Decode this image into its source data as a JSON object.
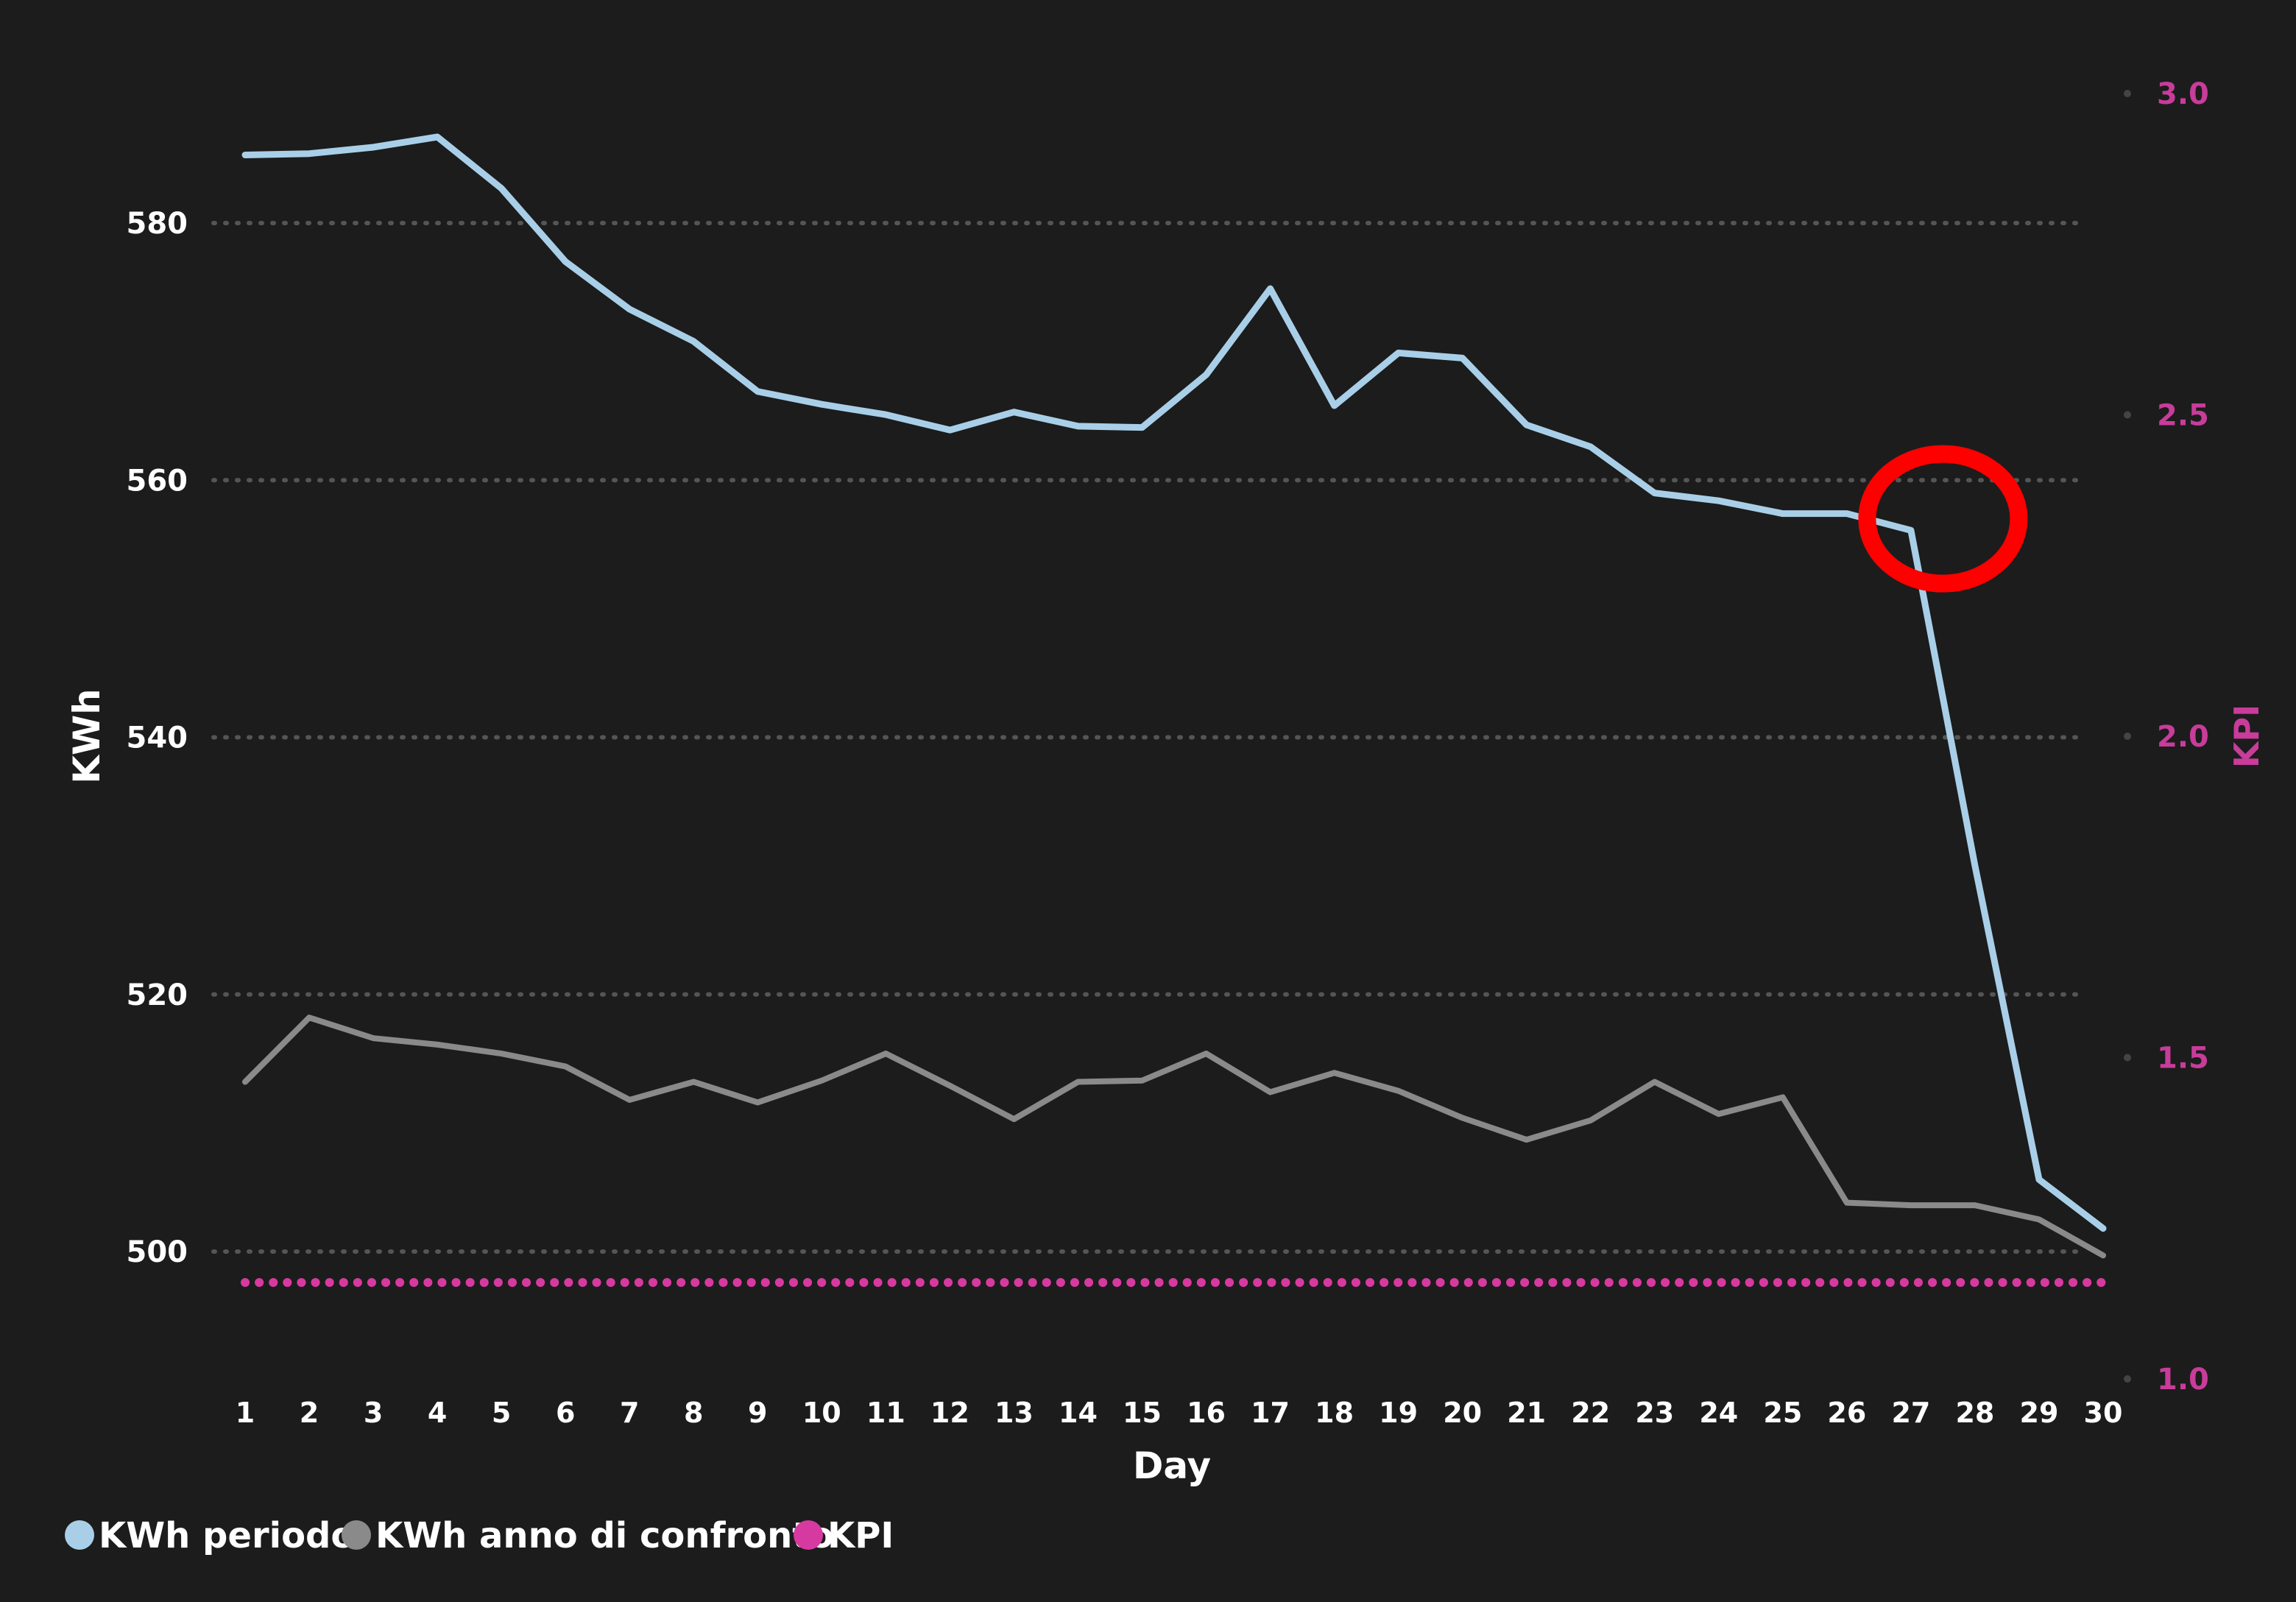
{
  "chart_data": {
    "type": "line",
    "xlabel": "Day",
    "ylabel": "KWh",
    "y2label": "KPI",
    "x": [
      1,
      2,
      3,
      4,
      5,
      6,
      7,
      8,
      9,
      10,
      11,
      12,
      13,
      14,
      15,
      16,
      17,
      18,
      19,
      20,
      21,
      22,
      23,
      24,
      25,
      26,
      27,
      28,
      29,
      30
    ],
    "ylim": [
      490,
      590
    ],
    "y_ticks": [
      500,
      520,
      540,
      560,
      580
    ],
    "y2lim": [
      1.0,
      3.0
    ],
    "y2_ticks": [
      "1.0",
      "1.5",
      "2.0",
      "2.5",
      "3.0"
    ],
    "grid": true,
    "legend_position": "bottom-left",
    "series": [
      {
        "name": "KWh periodo",
        "color": "#a9cfe8",
        "axis": "left",
        "values": [
          585.3,
          585.4,
          585.9,
          586.7,
          582.7,
          577.0,
          573.3,
          570.8,
          566.9,
          565.9,
          565.1,
          563.9,
          565.3,
          564.2,
          564.1,
          568.2,
          574.9,
          565.8,
          569.9,
          569.5,
          564.3,
          562.6,
          559.0,
          558.4,
          557.4,
          557.4,
          556.1,
          530.0,
          505.6,
          501.8
        ]
      },
      {
        "name": "KWh anno di confronto",
        "color": "#8a8a8a",
        "axis": "left",
        "values": [
          513.2,
          518.2,
          516.6,
          516.1,
          515.4,
          514.4,
          511.8,
          513.2,
          511.6,
          513.3,
          515.4,
          512.9,
          510.3,
          513.2,
          513.3,
          515.4,
          512.4,
          513.9,
          512.5,
          510.4,
          508.7,
          510.2,
          513.2,
          510.7,
          512.0,
          503.8,
          503.6,
          503.6,
          502.5,
          499.7
        ]
      },
      {
        "name": "KPI",
        "color": "#d63aa0",
        "axis": "right",
        "values": [
          1.15,
          1.15,
          1.15,
          1.15,
          1.15,
          1.15,
          1.15,
          1.15,
          1.15,
          1.15,
          1.15,
          1.15,
          1.15,
          1.15,
          1.15,
          1.15,
          1.15,
          1.15,
          1.15,
          1.15,
          1.15,
          1.15,
          1.15,
          1.15,
          1.15,
          1.15,
          1.15,
          1.15,
          1.15,
          1.15
        ]
      }
    ],
    "annotations": [
      {
        "type": "circle",
        "color": "#ff0000",
        "day": 27.5,
        "value": 557
      }
    ]
  }
}
